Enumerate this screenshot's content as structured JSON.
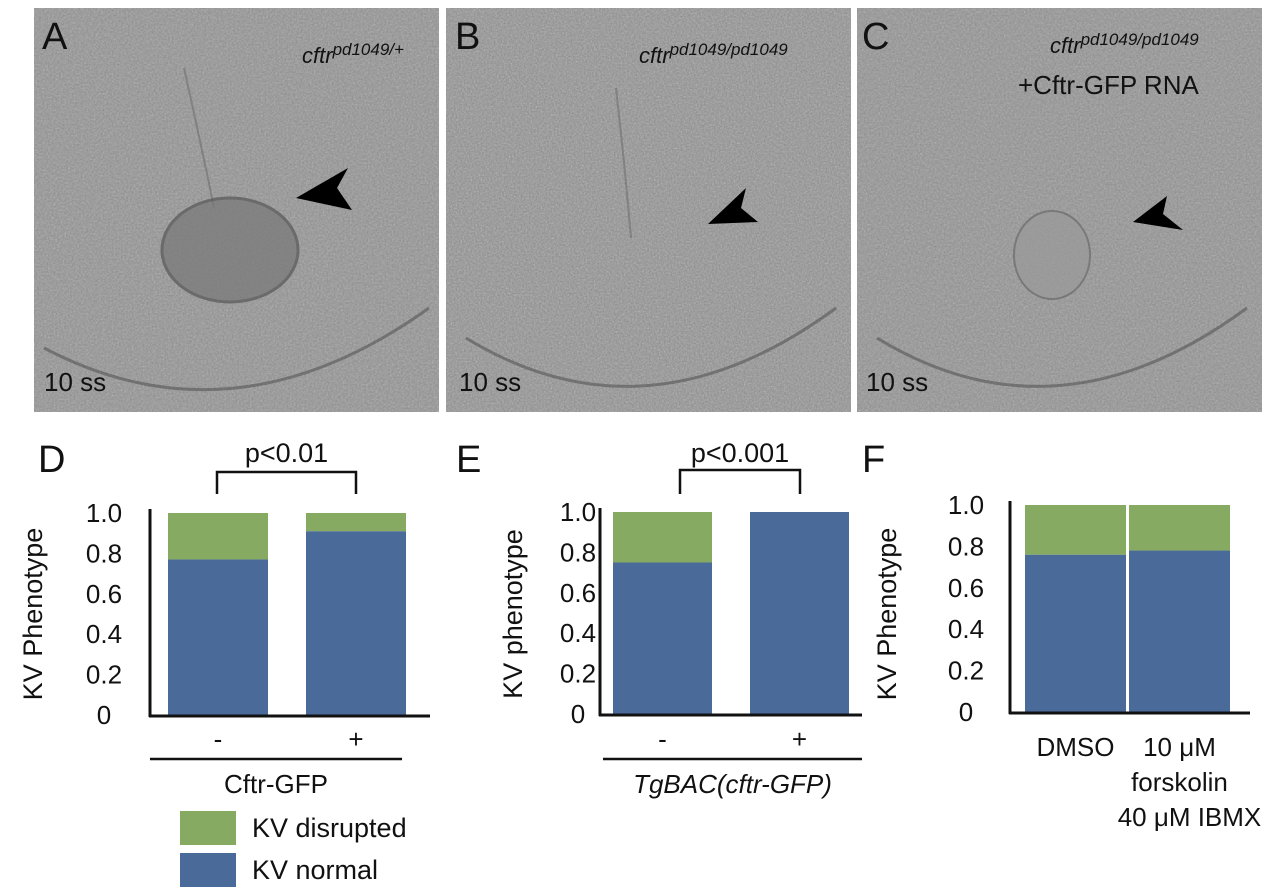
{
  "panels": [
    {
      "letter": "A",
      "genotype_base": "cftr",
      "genotype_sup": "pd1049/+",
      "stage": "10 ss"
    },
    {
      "letter": "B",
      "genotype_base": "cftr",
      "genotype_sup": "pd1049/pd1049",
      "stage": "10 ss"
    },
    {
      "letter": "C",
      "genotype_base": "cftr",
      "genotype_sup": "pd1049/pd1049",
      "extra": "+Cftr-GFP RNA",
      "stage": "10 ss"
    }
  ],
  "colors": {
    "normal": "#4a6b9a",
    "disrupted": "#86aa62"
  },
  "legend": [
    {
      "label": "KV disrupted",
      "color": "#86aa62"
    },
    {
      "label": "KV normal",
      "color": "#4a6b9a"
    }
  ],
  "chart_data": [
    {
      "type": "bar",
      "stacked": true,
      "letter": "D",
      "ylabel": "KV Phenotype",
      "categories": [
        "-",
        "+"
      ],
      "group_label": "Cftr-GFP",
      "group_italic": false,
      "significance": "p<0.01",
      "yticks": [
        "0",
        "0.2",
        "0.4",
        "0.6",
        "0.8",
        "1.0"
      ],
      "ylim": [
        0,
        1.0
      ],
      "series": [
        {
          "name": "KV normal",
          "values": [
            0.77,
            0.91
          ]
        },
        {
          "name": "KV disrupted",
          "values": [
            0.23,
            0.09
          ]
        }
      ]
    },
    {
      "type": "bar",
      "stacked": true,
      "letter": "E",
      "ylabel": "KV phenotype",
      "categories": [
        "-",
        "+"
      ],
      "group_label": "TgBAC(cftr-GFP)",
      "group_italic": true,
      "significance": "p<0.001",
      "yticks": [
        "0",
        "0.2",
        "0.4",
        "0.6",
        "0.8",
        "1.0"
      ],
      "ylim": [
        0,
        1.0
      ],
      "series": [
        {
          "name": "KV normal",
          "values": [
            0.75,
            1.0
          ]
        },
        {
          "name": "KV disrupted",
          "values": [
            0.25,
            0.0
          ]
        }
      ]
    },
    {
      "type": "bar",
      "stacked": true,
      "letter": "F",
      "ylabel": "KV Phenotype",
      "categories": [
        "DMSO",
        "10 μM\nforskolin\n40 μM IBMX"
      ],
      "yticks": [
        "0",
        "0.2",
        "0.4",
        "0.6",
        "0.8",
        "1.0"
      ],
      "ylim": [
        0,
        1.0
      ],
      "series": [
        {
          "name": "KV normal",
          "values": [
            0.76,
            0.78
          ]
        },
        {
          "name": "KV disrupted",
          "values": [
            0.24,
            0.22
          ]
        }
      ]
    }
  ]
}
